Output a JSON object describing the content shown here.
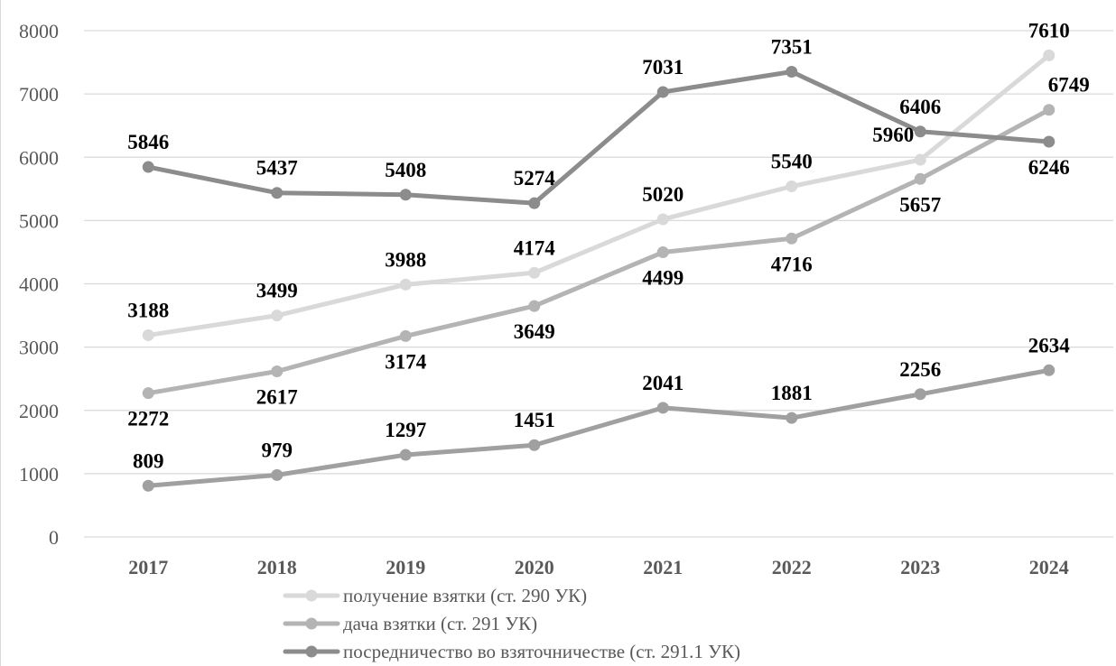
{
  "chart_data": {
    "type": "line",
    "title": "",
    "xlabel": "",
    "ylabel": "",
    "categories": [
      "2017",
      "2018",
      "2019",
      "2020",
      "2021",
      "2022",
      "2023",
      "2024"
    ],
    "ylim": [
      0,
      8000
    ],
    "yticks": [
      0,
      1000,
      2000,
      3000,
      4000,
      5000,
      6000,
      7000,
      8000
    ],
    "grid": true,
    "legend_position": "bottom",
    "series": [
      {
        "name": "получение взятки (ст. 290 УК)",
        "color": "#d9d9d9",
        "values": [
          3188,
          3499,
          3988,
          4174,
          5020,
          5540,
          5960,
          7610
        ]
      },
      {
        "name": "дача взятки (ст. 291 УК)",
        "color": "#b4b4b4",
        "values": [
          2272,
          2617,
          3174,
          3649,
          4499,
          4716,
          5657,
          6749
        ]
      },
      {
        "name": "посредничество во взяточничестве (ст. 291.1 УК)",
        "color": "#8c8c8c",
        "values": [
          5846,
          5437,
          5408,
          5274,
          7031,
          7351,
          6406,
          6246
        ]
      },
      {
        "name": "",
        "color": "#a0a0a0",
        "values": [
          809,
          979,
          1297,
          1451,
          2041,
          1881,
          2256,
          2634
        ]
      }
    ]
  }
}
